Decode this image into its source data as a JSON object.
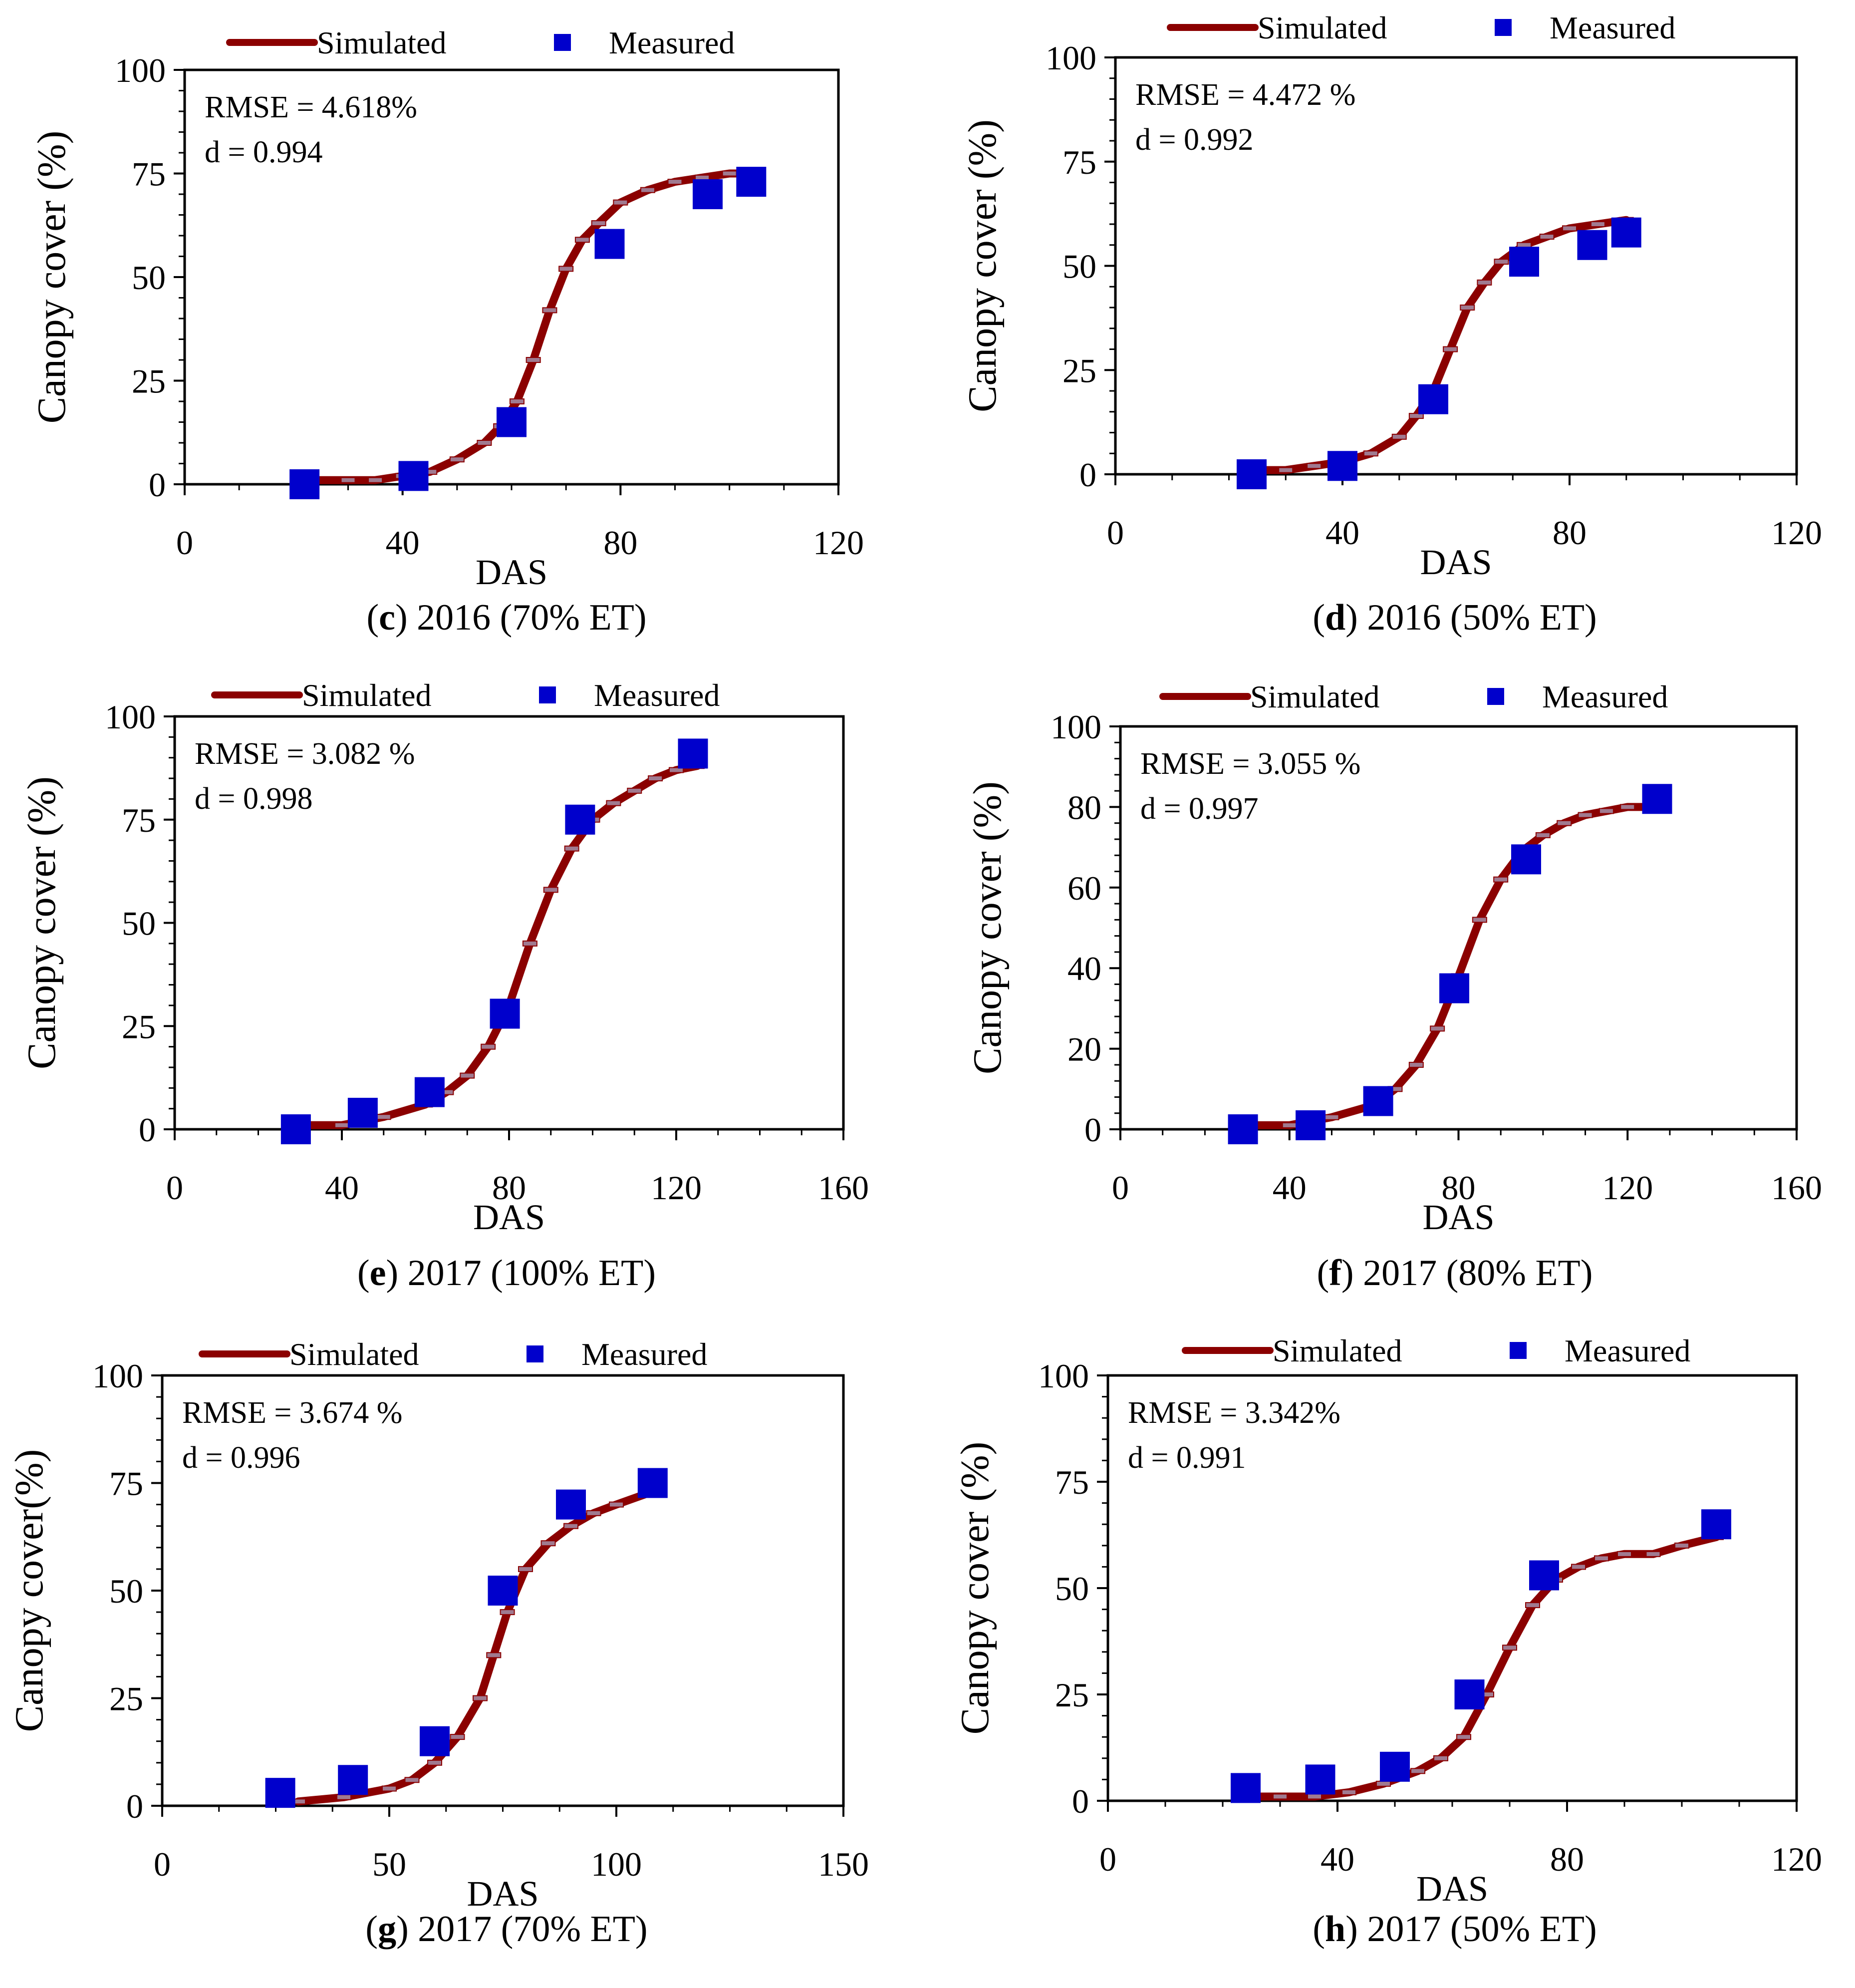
{
  "colors": {
    "simulated": "#8b0000",
    "measured": "#0000cc",
    "axis": "#000000"
  },
  "chart_data": [
    {
      "type": "scatter",
      "panel": "c",
      "caption_letter": "c",
      "caption_text": " 2016 (70% ET)",
      "legend": {
        "simulated": "Simulated",
        "measured": "Measured"
      },
      "xlabel": "DAS",
      "ylabel": "Canopy cover (%)",
      "xlim": [
        0,
        120
      ],
      "ylim": [
        0,
        100
      ],
      "xticks": [
        "0",
        "40",
        "80",
        "120"
      ],
      "yticks": [
        "0",
        "25",
        "50",
        "75",
        "100"
      ],
      "stats": {
        "rmse": "RMSE = 4.618%",
        "d": "d = 0.994"
      },
      "measured": {
        "x": [
          22,
          42,
          60,
          78,
          96,
          104
        ],
        "y": [
          0,
          2,
          15,
          58,
          70,
          73
        ]
      },
      "simulated": {
        "x": [
          22,
          30,
          35,
          40,
          45,
          50,
          55,
          58,
          61,
          64,
          67,
          70,
          73,
          76,
          80,
          85,
          90,
          95,
          100,
          105
        ],
        "y": [
          1,
          1,
          1,
          2,
          3,
          6,
          10,
          14,
          20,
          30,
          42,
          52,
          59,
          63,
          68,
          71,
          73,
          74,
          75,
          75
        ]
      }
    },
    {
      "type": "scatter",
      "panel": "d",
      "caption_letter": "d",
      "caption_text": " 2016 (50% ET)",
      "legend": {
        "simulated": "Simulated",
        "measured": "Measured"
      },
      "xlabel": "DAS",
      "ylabel": "Canopy cover (%)",
      "xlim": [
        0,
        120
      ],
      "ylim": [
        0,
        100
      ],
      "xticks": [
        "0",
        "40",
        "80",
        "120"
      ],
      "yticks": [
        "0",
        "25",
        "50",
        "75",
        "100"
      ],
      "stats": {
        "rmse": "RMSE = 4.472 %",
        "d": "d = 0.992"
      },
      "measured": {
        "x": [
          24,
          40,
          56,
          72,
          84,
          90
        ],
        "y": [
          0,
          2,
          18,
          51,
          55,
          58
        ]
      },
      "simulated": {
        "x": [
          24,
          30,
          35,
          40,
          45,
          50,
          53,
          56,
          59,
          62,
          65,
          68,
          72,
          76,
          80,
          85,
          90
        ],
        "y": [
          1,
          1,
          2,
          3,
          5,
          9,
          14,
          20,
          30,
          40,
          46,
          51,
          55,
          57,
          59,
          60,
          61
        ]
      }
    },
    {
      "type": "scatter",
      "panel": "e",
      "caption_letter": "e",
      "caption_text": " 2017 (100% ET)",
      "legend": {
        "simulated": "Simulated",
        "measured": "Measured"
      },
      "xlabel": "DAS",
      "ylabel": "Canopy cover  (%)",
      "xlim": [
        0,
        160
      ],
      "ylim": [
        0,
        100
      ],
      "xticks": [
        "0",
        "40",
        "80",
        "120",
        "160"
      ],
      "yticks": [
        "0",
        "25",
        "50",
        "75",
        "100"
      ],
      "stats": {
        "rmse": "RMSE = 3.082 %",
        "d": "d = 0.998"
      },
      "measured": {
        "x": [
          29,
          45,
          61,
          79,
          97,
          124
        ],
        "y": [
          0,
          4,
          9,
          28,
          75,
          91
        ]
      },
      "simulated": {
        "x": [
          30,
          40,
          50,
          60,
          65,
          70,
          75,
          80,
          85,
          90,
          95,
          100,
          105,
          110,
          115,
          120,
          125
        ],
        "y": [
          1,
          1,
          3,
          6,
          9,
          13,
          20,
          30,
          45,
          58,
          68,
          75,
          79,
          82,
          85,
          87,
          88
        ]
      }
    },
    {
      "type": "scatter",
      "panel": "f",
      "caption_letter": "f",
      "caption_text": " 2017 (80% ET)",
      "legend": {
        "simulated": "Simulated",
        "measured": "Measured"
      },
      "xlabel": "DAS",
      "ylabel": "Canopy cover (%)",
      "xlim": [
        0,
        160
      ],
      "ylim": [
        0,
        100
      ],
      "xticks": [
        "0",
        "40",
        "80",
        "120",
        "160"
      ],
      "yticks": [
        "0",
        "20",
        "40",
        "60",
        "80",
        "100"
      ],
      "stats": {
        "rmse": "RMSE = 3.055 %",
        "d": "d = 0.997"
      },
      "measured": {
        "x": [
          29,
          45,
          61,
          79,
          96,
          127
        ],
        "y": [
          0,
          1,
          7,
          35,
          67,
          82
        ]
      },
      "simulated": {
        "x": [
          29,
          40,
          50,
          60,
          65,
          70,
          75,
          80,
          85,
          90,
          95,
          100,
          105,
          110,
          115,
          120,
          127
        ],
        "y": [
          1,
          1,
          3,
          6,
          10,
          16,
          25,
          38,
          52,
          62,
          69,
          73,
          76,
          78,
          79,
          80,
          80
        ]
      }
    },
    {
      "type": "scatter",
      "panel": "g",
      "caption_letter": "g",
      "caption_text": " 2017 (70% ET)",
      "legend": {
        "simulated": "Simulated",
        "measured": "Measured"
      },
      "xlabel": "DAS",
      "ylabel": "Canopy cover(%)",
      "xlim": [
        0,
        150
      ],
      "ylim": [
        0,
        100
      ],
      "xticks": [
        "0",
        "50",
        "100",
        "150"
      ],
      "yticks": [
        "0",
        "25",
        "50",
        "75",
        "100"
      ],
      "stats": {
        "rmse": "RMSE = 3.674 %",
        "d": "d = 0.996"
      },
      "measured": {
        "x": [
          26,
          42,
          60,
          75,
          90,
          108
        ],
        "y": [
          3,
          6,
          15,
          50,
          70,
          75
        ]
      },
      "simulated": {
        "x": [
          30,
          40,
          50,
          55,
          60,
          65,
          70,
          73,
          76,
          80,
          85,
          90,
          95,
          100,
          108
        ],
        "y": [
          1,
          2,
          4,
          6,
          10,
          16,
          25,
          35,
          45,
          55,
          61,
          65,
          68,
          70,
          73
        ]
      }
    },
    {
      "type": "scatter",
      "panel": "h",
      "caption_letter": "h",
      "caption_text": " 2017 (50% ET)",
      "legend": {
        "simulated": "Simulated",
        "measured": "Measured"
      },
      "xlabel": "DAS",
      "ylabel": "Canopy cover (%)",
      "xlim": [
        0,
        120
      ],
      "ylim": [
        0,
        100
      ],
      "xticks": [
        "0",
        "40",
        "80",
        "120"
      ],
      "yticks": [
        "0",
        "25",
        "50",
        "75",
        "100"
      ],
      "stats": {
        "rmse": "RMSE = 3.342%",
        "d": "d = 0.991"
      },
      "measured": {
        "x": [
          24,
          37,
          50,
          63,
          76,
          106
        ],
        "y": [
          3,
          5,
          8,
          25,
          53,
          65
        ]
      },
      "simulated": {
        "x": [
          24,
          30,
          36,
          42,
          48,
          54,
          58,
          62,
          66,
          70,
          74,
          78,
          82,
          86,
          90,
          95,
          100,
          106
        ],
        "y": [
          1,
          1,
          1,
          2,
          4,
          7,
          10,
          15,
          25,
          36,
          46,
          52,
          55,
          57,
          58,
          58,
          60,
          62
        ]
      }
    }
  ]
}
